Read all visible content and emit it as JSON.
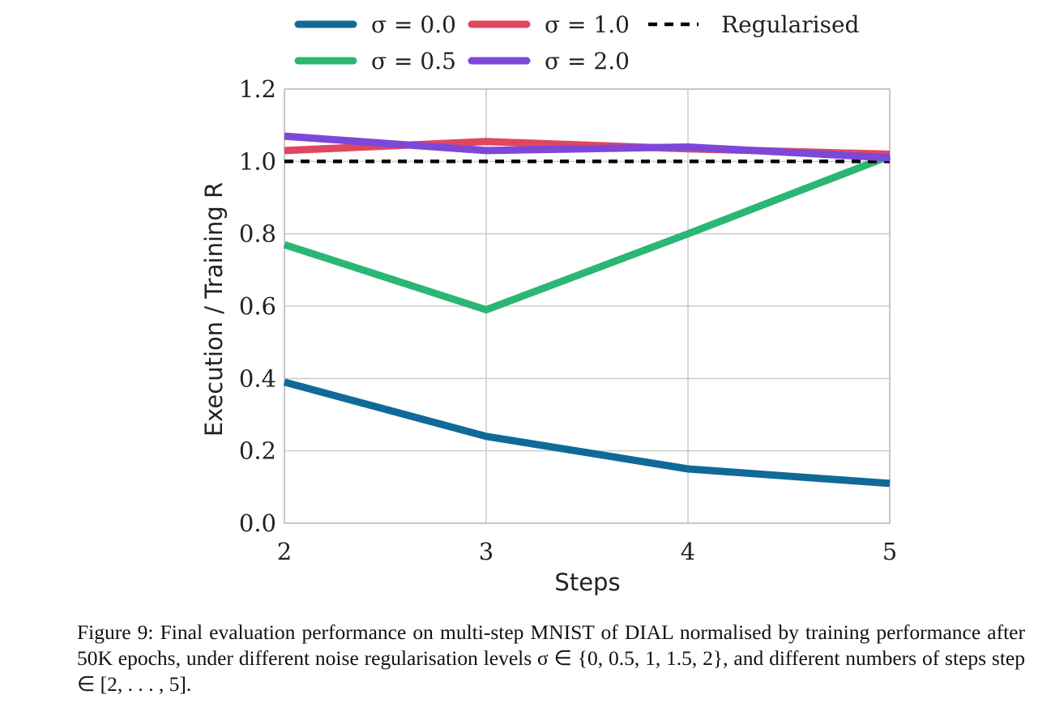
{
  "chart_data": {
    "type": "line",
    "title": "",
    "xlabel": "Steps",
    "ylabel": "Execution / Training R",
    "x": [
      2,
      3,
      4,
      5
    ],
    "xticks": [
      "2",
      "3",
      "4",
      "5"
    ],
    "yticks": [
      "0.0",
      "0.2",
      "0.4",
      "0.6",
      "0.8",
      "1.0",
      "1.2"
    ],
    "xlim": [
      2,
      5
    ],
    "ylim": [
      0,
      1.2
    ],
    "grid": true,
    "legend_position": "top",
    "series": [
      {
        "name": "σ = 0.0",
        "color": "#106a97",
        "values": [
          0.39,
          0.24,
          0.15,
          0.11
        ]
      },
      {
        "name": "σ = 1.0",
        "color": "#e0475f",
        "values": [
          1.03,
          1.055,
          1.035,
          1.02
        ]
      },
      {
        "name": "Regularised",
        "color": "#000000",
        "dashed": true,
        "values": [
          1.0,
          1.0,
          1.0,
          1.0
        ]
      },
      {
        "name": "σ = 0.5",
        "color": "#2bb773",
        "values": [
          0.77,
          0.59,
          0.8,
          1.015
        ]
      },
      {
        "name": "σ = 2.0",
        "color": "#7d47d9",
        "values": [
          1.07,
          1.03,
          1.04,
          1.01
        ]
      }
    ]
  },
  "caption": {
    "text": "Figure 9: Final evaluation performance on multi-step MNIST of DIAL normalised by training performance after 50K epochs, under different noise regularisation levels σ ∈ {0, 0.5, 1, 1.5, 2}, and different numbers of steps step ∈ [2, . . . , 5]."
  }
}
